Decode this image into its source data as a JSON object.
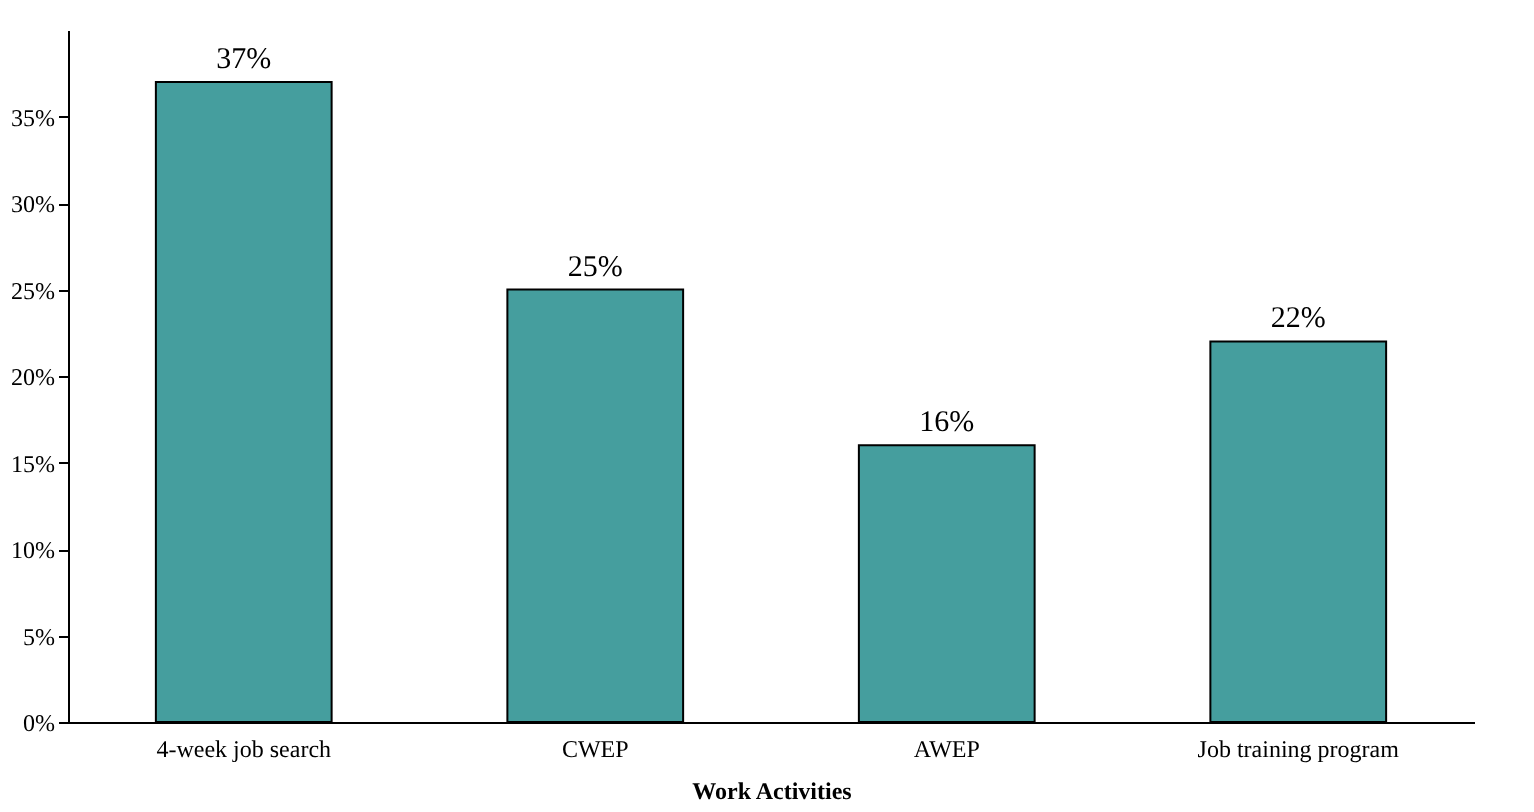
{
  "chart_data": {
    "type": "bar",
    "categories": [
      "4-week job search",
      "CWEP",
      "AWEP",
      "Job training program"
    ],
    "values": [
      37,
      25,
      16,
      22
    ],
    "value_labels": [
      "37%",
      "25%",
      "16%",
      "22%"
    ],
    "color": "#459e9e",
    "xlabel": "Work Activities",
    "ylim": [
      0,
      40
    ],
    "yticks": [
      {
        "value": 0,
        "label": "0%"
      },
      {
        "value": 5,
        "label": "5%"
      },
      {
        "value": 10,
        "label": "10%"
      },
      {
        "value": 15,
        "label": "15%"
      },
      {
        "value": 20,
        "label": "20%"
      },
      {
        "value": 25,
        "label": "25%"
      },
      {
        "value": 30,
        "label": "30%"
      },
      {
        "value": 35,
        "label": "35%"
      }
    ],
    "grid": false
  }
}
